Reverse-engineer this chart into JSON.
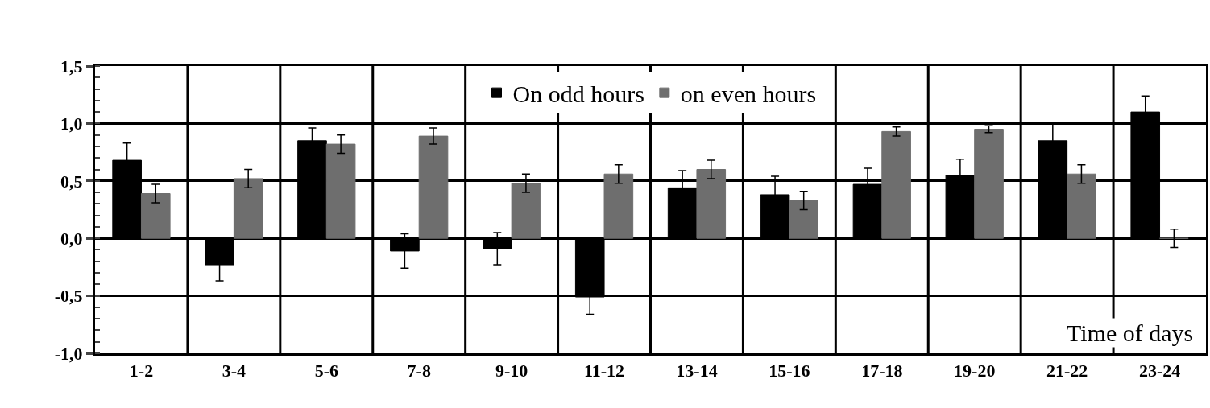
{
  "chart_data": {
    "type": "bar",
    "xlabel": "Time of days",
    "categories": [
      "1-2",
      "3-4",
      "5-6",
      "7-8",
      "9-10",
      "11-12",
      "13-14",
      "15-16",
      "17-18",
      "19-20",
      "21-22",
      "23-24"
    ],
    "series": [
      {
        "name": "On odd hours",
        "color": "#000000",
        "values": [
          0.68,
          -0.23,
          0.85,
          -0.11,
          -0.09,
          -0.51,
          0.44,
          0.38,
          0.47,
          0.55,
          0.85,
          1.1
        ],
        "errors": [
          0.15,
          0.14,
          0.11,
          0.15,
          0.14,
          0.15,
          0.15,
          0.16,
          0.14,
          0.14,
          0.15,
          0.14
        ]
      },
      {
        "name": "on even hours",
        "color": "#6e6e6e",
        "values": [
          0.39,
          0.52,
          0.82,
          0.89,
          0.48,
          0.56,
          0.6,
          0.33,
          0.93,
          0.95,
          0.56,
          0.0
        ],
        "errors": [
          0.08,
          0.08,
          0.08,
          0.07,
          0.08,
          0.08,
          0.08,
          0.08,
          0.04,
          0.03,
          0.08,
          0.08
        ]
      }
    ],
    "ylim": [
      -1.0,
      1.5
    ],
    "yticks": [
      {
        "value": -1.0,
        "label": "-1,0"
      },
      {
        "value": -0.5,
        "label": "-0,5"
      },
      {
        "value": 0.0,
        "label": "0,0"
      },
      {
        "value": 0.5,
        "label": "0,5"
      },
      {
        "value": 1.0,
        "label": "1,0"
      },
      {
        "value": 1.5,
        "label": "1,5"
      }
    ],
    "grid": true,
    "legend": "top"
  }
}
